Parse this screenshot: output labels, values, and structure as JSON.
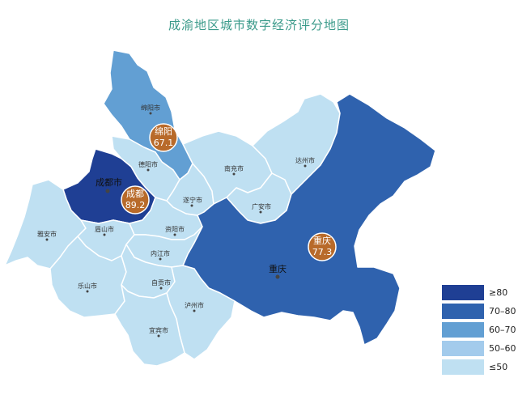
{
  "title": "成渝地区城市数字经济评分地图",
  "colors": {
    "gte80": "#1f3f94",
    "c70_80": "#2f62ae",
    "c60_70": "#629fd3",
    "c50_60": "#a3cbec",
    "lte50": "#bfe0f2",
    "border": "#ffffff",
    "badge": "#b86a2a"
  },
  "cities": {
    "chengdu": "成都市",
    "chongqing": "重庆",
    "mianyang": "绵阳市",
    "deyang": "德阳市",
    "nanchong": "南充市",
    "dazhou": "达州市",
    "suining": "遂宁市",
    "guangan": "广安市",
    "yaan": "雅安市",
    "meishan": "眉山市",
    "ziyang": "资阳市",
    "neijiang": "内江市",
    "leshan": "乐山市",
    "zigong": "自贡市",
    "luzhou": "泸州市",
    "yibin": "宜宾市"
  },
  "badges": {
    "mianyang": {
      "name": "绵阳",
      "score": "67.1"
    },
    "chengdu": {
      "name": "成都",
      "score": "89.2"
    },
    "chongqing": {
      "name": "重庆",
      "score": "77.3"
    }
  },
  "legend": [
    {
      "label": "≥80",
      "color": "#1f3f94"
    },
    {
      "label": "70–80",
      "color": "#2f62ae"
    },
    {
      "label": "60–70",
      "color": "#629fd3"
    },
    {
      "label": "50–60",
      "color": "#a3cbec"
    },
    {
      "label": "≤50",
      "color": "#bfe0f2"
    }
  ]
}
